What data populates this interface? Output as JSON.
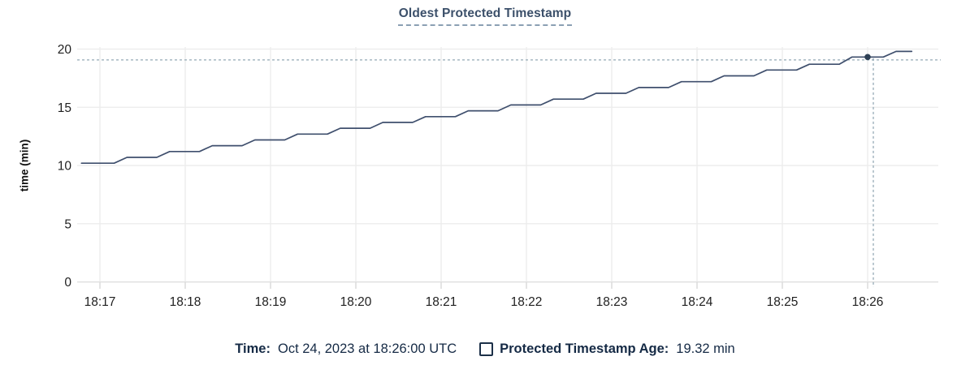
{
  "legend": {
    "time_label": "Time:",
    "time_value": "Oct 24, 2023 at 18:26:00 UTC",
    "series_label": "Protected Timestamp Age:",
    "series_value": "19.32 min"
  },
  "theme": {
    "line_color": "#3f4f6d",
    "dot_color": "#2f4156",
    "crosshair_color": "#94a9b5",
    "grid_color": "#ececec",
    "baseline_color": "#dcdcdc",
    "tick_mark_color": "#d6d6d6",
    "axis_text_color": "#1f1f1f",
    "title_color": "#3c506a",
    "title_underline_color": "#8ba0b3",
    "legend_text_color": "#152a45",
    "checkbox_border_color": "#1c3048"
  },
  "chart_data": {
    "type": "line",
    "title": "Oldest Protected Timestamp",
    "xlabel": "",
    "ylabel": "time (min)",
    "ylim": [
      0,
      20
    ],
    "yticks": [
      0,
      5,
      10,
      15,
      20
    ],
    "x_tick_labels": [
      "18:17",
      "18:18",
      "18:19",
      "18:20",
      "18:21",
      "18:22",
      "18:23",
      "18:24",
      "18:25",
      "18:26"
    ],
    "x_tick_interval_seconds": 60,
    "grid": true,
    "legend_position": "bottom",
    "series": [
      {
        "name": "Protected Timestamp Age",
        "units": "min",
        "points_t_seconds_from_1817_value_min": [
          [
            -13,
            10.2
          ],
          [
            10,
            10.2
          ],
          [
            19,
            10.7
          ],
          [
            40,
            10.7
          ],
          [
            49,
            11.2
          ],
          [
            70,
            11.2
          ],
          [
            79,
            11.7
          ],
          [
            100,
            11.7
          ],
          [
            109,
            12.2
          ],
          [
            130,
            12.2
          ],
          [
            139,
            12.7
          ],
          [
            160,
            12.7
          ],
          [
            169,
            13.2
          ],
          [
            190,
            13.2
          ],
          [
            199,
            13.7
          ],
          [
            220,
            13.7
          ],
          [
            229,
            14.2
          ],
          [
            250,
            14.2
          ],
          [
            259,
            14.7
          ],
          [
            280,
            14.7
          ],
          [
            289,
            15.2
          ],
          [
            310,
            15.2
          ],
          [
            319,
            15.7
          ],
          [
            340,
            15.7
          ],
          [
            349,
            16.2
          ],
          [
            370,
            16.2
          ],
          [
            379,
            16.7
          ],
          [
            400,
            16.7
          ],
          [
            409,
            17.2
          ],
          [
            430,
            17.2
          ],
          [
            439,
            17.7
          ],
          [
            460,
            17.7
          ],
          [
            469,
            18.2
          ],
          [
            490,
            18.2
          ],
          [
            499,
            18.7
          ],
          [
            520,
            18.7
          ],
          [
            529,
            19.32
          ],
          [
            551,
            19.32
          ],
          [
            560,
            19.8
          ],
          [
            571,
            19.8
          ]
        ]
      }
    ],
    "highlight_point": {
      "time": "18:26:00",
      "t_seconds": 540,
      "value_min": 19.32
    },
    "crosshair": {
      "t_seconds": 544,
      "value_min": 19.07
    }
  }
}
